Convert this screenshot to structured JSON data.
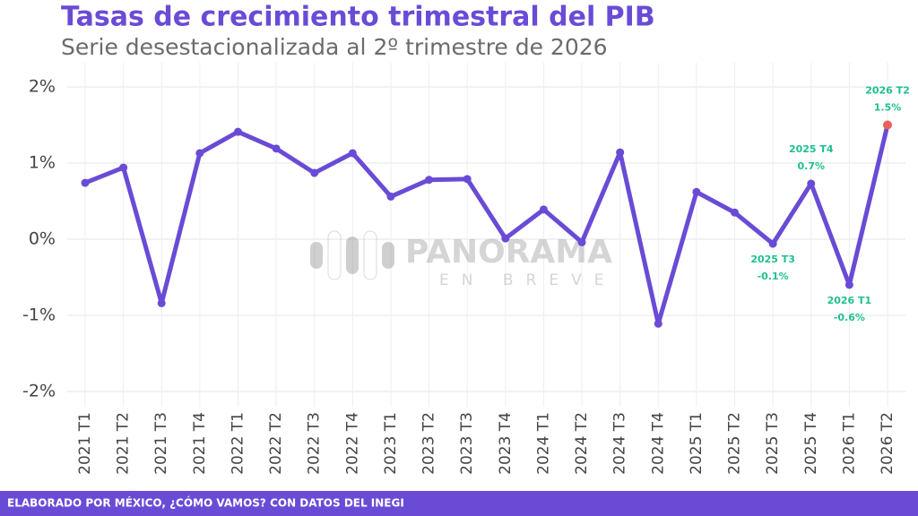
{
  "chart_data": {
    "type": "line",
    "title": "Tasas de crecimiento trimestral del PIB",
    "subtitle": "Serie desestacionalizada al 2º trimestre de 2026",
    "footer": "ELABORADO POR MÉXICO, ¿CÓMO VAMOS? CON DATOS DEL INEGI",
    "watermark": [
      "PANORAMA",
      "EN BREVE"
    ],
    "categories": [
      "2021 T1",
      "2021 T2",
      "2021 T3",
      "2021 T4",
      "2022 T1",
      "2022 T2",
      "2022 T3",
      "2022 T4",
      "2023 T1",
      "2023 T2",
      "2023 T3",
      "2023 T4",
      "2024 T1",
      "2024 T2",
      "2024 T3",
      "2024 T4",
      "2025 T1",
      "2025 T2",
      "2025 T3",
      "2025 T4",
      "2026 T1",
      "2026 T2"
    ],
    "series": [
      {
        "name": "PIB",
        "color": "#6a4bd6",
        "highlight_color": "#e8605a",
        "values": [
          0.74,
          0.94,
          -0.84,
          1.13,
          1.41,
          1.19,
          0.87,
          1.13,
          0.56,
          0.78,
          0.79,
          0.01,
          0.39,
          -0.04,
          1.14,
          -1.11,
          0.62,
          0.35,
          -0.06,
          0.73,
          -0.6,
          1.5
        ],
        "value_labels": [
          null,
          null,
          null,
          null,
          null,
          null,
          null,
          null,
          null,
          null,
          null,
          null,
          null,
          null,
          null,
          null,
          null,
          null,
          "-0.1%",
          "0.7%",
          "-0.6%",
          "1.5%"
        ]
      }
    ],
    "label_color": "#1fbf8f",
    "ylim": [
      -2.2,
      2.2
    ],
    "yticks": [
      {
        "value": -2,
        "label": "-2%"
      },
      {
        "value": -1,
        "label": "-1%"
      },
      {
        "value": 0,
        "label": "0%"
      },
      {
        "value": 1,
        "label": "1%"
      },
      {
        "value": 2,
        "label": "2%"
      }
    ],
    "grid": true
  }
}
